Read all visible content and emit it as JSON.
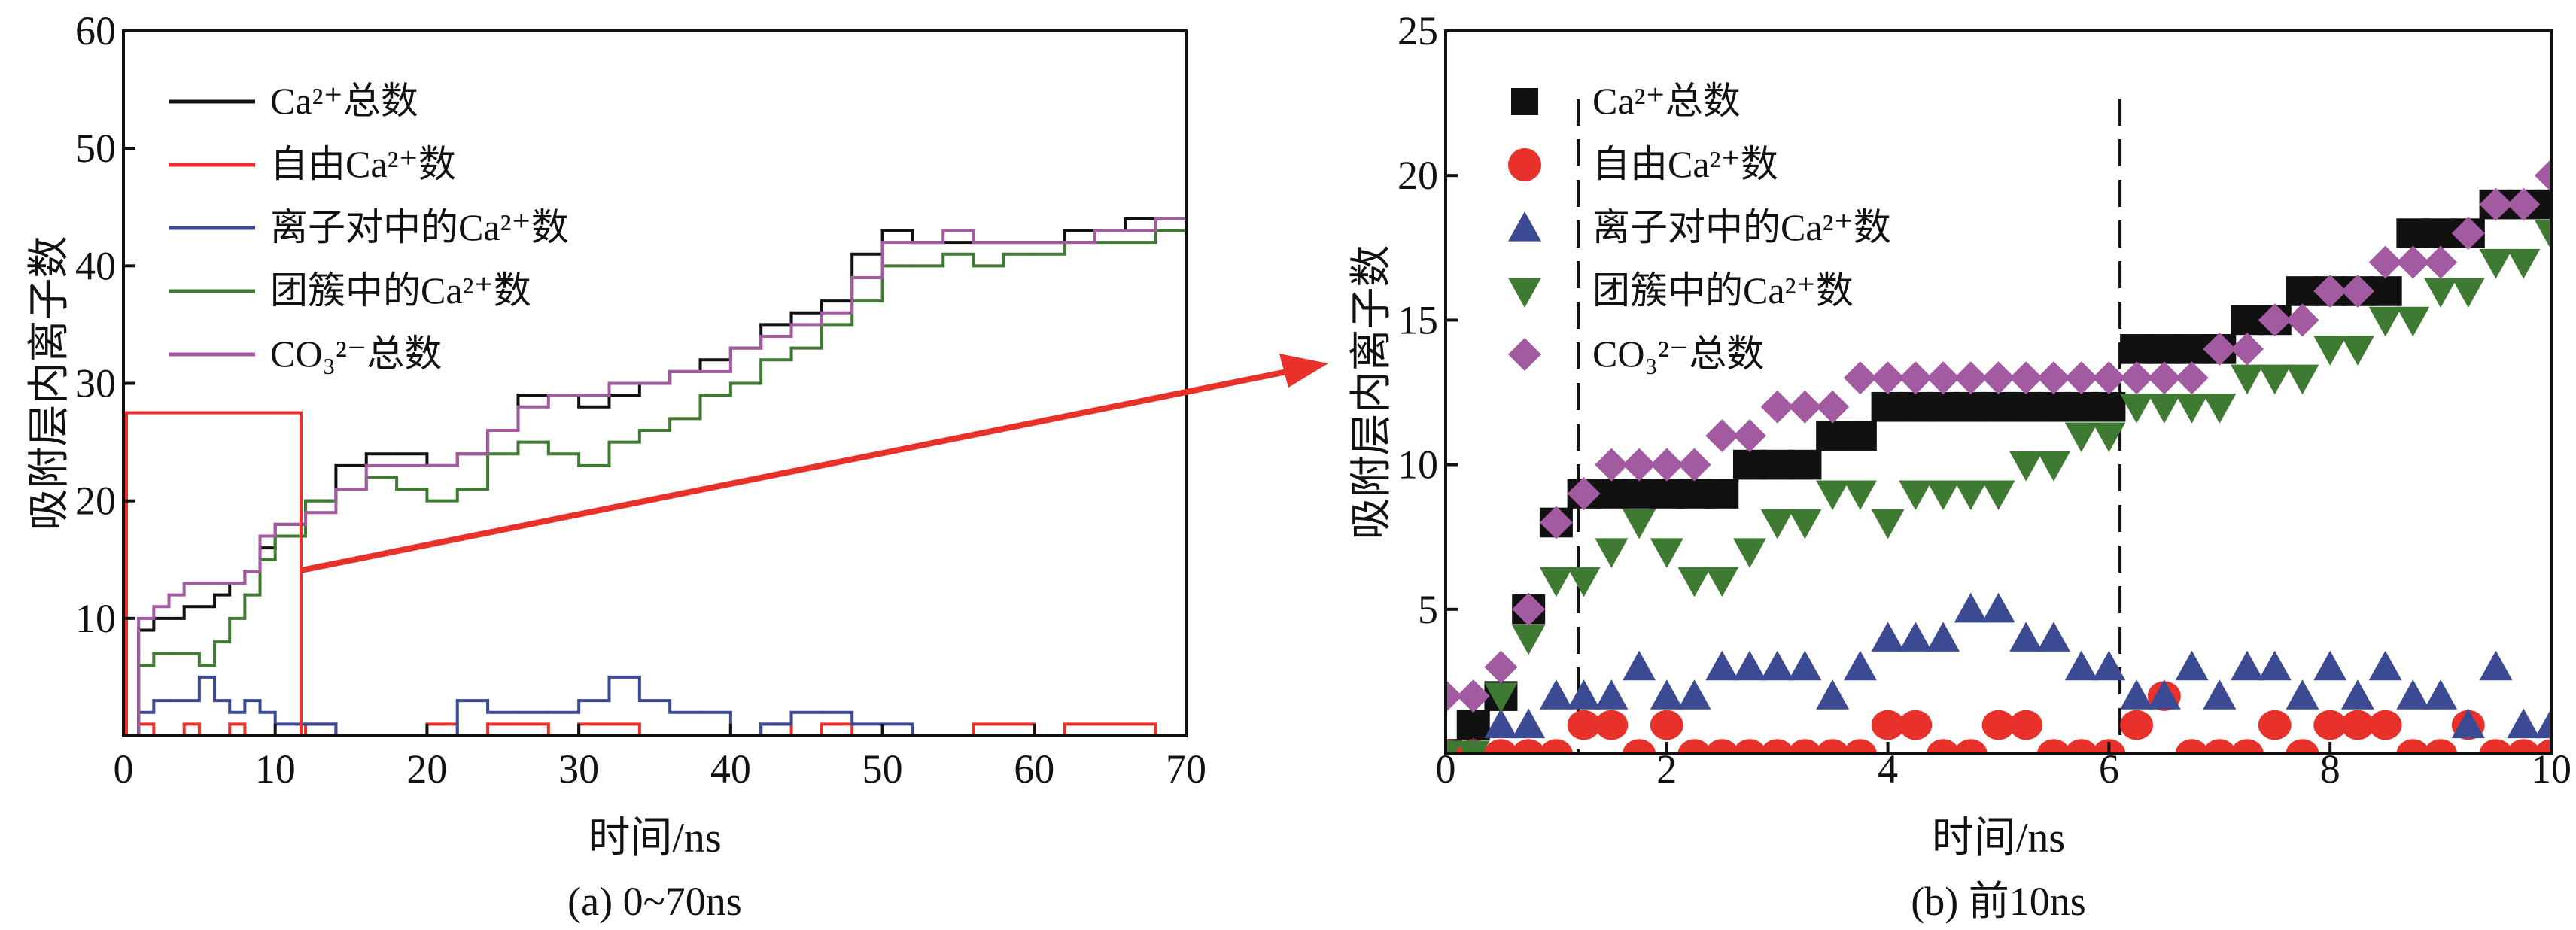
{
  "chart_data": [
    {
      "type": "line",
      "caption": "(a) 0~70ns",
      "xlabel": "时间/ns",
      "ylabel": "吸附层内离子数",
      "xlim": [
        0,
        70
      ],
      "ylim": [
        0,
        60
      ],
      "xticks": [
        "0",
        "10",
        "20",
        "30",
        "40",
        "50",
        "60",
        "70"
      ],
      "yticks": [
        "10",
        "20",
        "30",
        "40",
        "50",
        "60"
      ],
      "legend_position": "top-left",
      "zoom_box": {
        "x": [
          0,
          11.5
        ],
        "y": [
          0,
          27.5
        ]
      },
      "x": [
        0,
        1,
        2,
        3,
        4,
        5,
        6,
        7,
        8,
        9,
        10,
        12,
        14,
        16,
        18,
        20,
        22,
        24,
        26,
        28,
        30,
        32,
        34,
        36,
        38,
        40,
        42,
        44,
        46,
        48,
        50,
        52,
        54,
        56,
        58,
        60,
        62,
        64,
        66,
        68,
        70
      ],
      "series": [
        {
          "name": "Ca²⁺总数",
          "label_main": "Ca",
          "label_sup": "2+",
          "label_suffix": "总数",
          "label_prefix": "",
          "color": "#111111",
          "values": [
            0,
            9,
            10,
            10,
            11,
            11,
            12,
            13,
            14,
            16,
            18,
            20,
            23,
            24,
            24,
            23,
            24,
            26,
            29,
            29,
            28,
            29,
            30,
            31,
            32,
            33,
            35,
            36,
            37,
            41,
            43,
            42,
            42,
            42,
            42,
            42,
            43,
            43,
            44,
            44,
            46
          ]
        },
        {
          "name": "自由Ca²⁺数",
          "label_prefix": "自由",
          "label_main": "Ca",
          "label_sup": "2+",
          "label_suffix": "数",
          "color": "#e8312a",
          "values": [
            0,
            1,
            0,
            0,
            1,
            0,
            0,
            1,
            0,
            0,
            0,
            1,
            0,
            0,
            0,
            1,
            0,
            1,
            1,
            0,
            1,
            1,
            0,
            0,
            0,
            0,
            1,
            0,
            1,
            0,
            0,
            0,
            0,
            1,
            1,
            0,
            1,
            1,
            1,
            0,
            0
          ]
        },
        {
          "name": "离子对中的Ca²⁺数",
          "label_prefix": "离子对中的",
          "label_main": "Ca",
          "label_sup": "2+",
          "label_suffix": "数",
          "color": "#3c4a94",
          "values": [
            0,
            2,
            3,
            3,
            3,
            5,
            3,
            2,
            3,
            2,
            1,
            1,
            0,
            0,
            0,
            0,
            3,
            2,
            2,
            2,
            3,
            5,
            3,
            2,
            2,
            0,
            1,
            2,
            2,
            1,
            1,
            0,
            0,
            0,
            0,
            0,
            0,
            0,
            0,
            0,
            0
          ]
        },
        {
          "name": "团簇中的Ca²⁺数",
          "label_prefix": "团簇中的",
          "label_main": "Ca",
          "label_sup": "2+",
          "label_suffix": "数",
          "color": "#3f7a32",
          "values": [
            0,
            6,
            7,
            7,
            7,
            6,
            8,
            10,
            12,
            15,
            17,
            20,
            21,
            22,
            21,
            20,
            21,
            24,
            25,
            24,
            23,
            25,
            26,
            27,
            29,
            30,
            32,
            33,
            35,
            37,
            40,
            40,
            41,
            40,
            41,
            41,
            42,
            42,
            42,
            43,
            46
          ]
        },
        {
          "name": "CO₃²⁻总数",
          "label_prefix": "",
          "label_main": "CO",
          "label_sub": "3",
          "label_sup": "2−",
          "label_suffix": "总数",
          "color": "#a25aa0",
          "values": [
            0,
            10,
            11,
            12,
            13,
            13,
            13,
            13,
            14,
            17,
            18,
            19,
            21,
            23,
            23,
            23,
            24,
            26,
            28,
            29,
            29,
            30,
            30,
            31,
            31,
            33,
            34,
            35,
            36,
            39,
            42,
            42,
            43,
            42,
            42,
            42,
            42,
            43,
            43,
            44,
            46
          ]
        }
      ]
    },
    {
      "type": "scatter",
      "caption": "(b) 前10ns",
      "xlabel": "时间/ns",
      "ylabel": "吸附层内离子数",
      "xlim": [
        0,
        10
      ],
      "ylim": [
        0,
        25
      ],
      "xticks": [
        "0",
        "2",
        "4",
        "6",
        "8",
        "10"
      ],
      "yticks": [
        "5",
        "10",
        "15",
        "20",
        "25"
      ],
      "legend_position": "top-left",
      "vlines": [
        1.2,
        6.1
      ],
      "x": [
        0,
        0.25,
        0.5,
        0.75,
        1,
        1.25,
        1.5,
        1.75,
        2,
        2.25,
        2.5,
        2.75,
        3,
        3.25,
        3.5,
        3.75,
        4,
        4.25,
        4.5,
        4.75,
        5,
        5.25,
        5.5,
        5.75,
        6,
        6.25,
        6.5,
        6.75,
        7,
        7.25,
        7.5,
        7.75,
        8,
        8.25,
        8.5,
        8.75,
        9,
        9.25,
        9.5,
        9.75,
        10
      ],
      "series": [
        {
          "name": "Ca²⁺总数",
          "marker": "square",
          "color": "#111111",
          "values": [
            0,
            1,
            2,
            5,
            8,
            9,
            9,
            9,
            9,
            9,
            9,
            10,
            10,
            10,
            11,
            11,
            12,
            12,
            12,
            12,
            12,
            12,
            12,
            12,
            12,
            14,
            14,
            14,
            14,
            15,
            15,
            16,
            16,
            16,
            16,
            18,
            18,
            18,
            19,
            19,
            19
          ]
        },
        {
          "name": "自由Ca²⁺数",
          "marker": "circle",
          "color": "#e8312a",
          "values": [
            0,
            0,
            0,
            0,
            0,
            1,
            1,
            0,
            1,
            0,
            0,
            0,
            0,
            0,
            0,
            0,
            1,
            1,
            0,
            0,
            1,
            1,
            0,
            0,
            0,
            1,
            2,
            0,
            0,
            0,
            1,
            0,
            1,
            1,
            1,
            0,
            0,
            1,
            0,
            0,
            0
          ]
        },
        {
          "name": "离子对中的Ca²⁺数",
          "marker": "triangle-up",
          "color": "#3c4a94",
          "values": [
            0,
            0,
            1,
            1,
            2,
            2,
            2,
            3,
            2,
            2,
            3,
            3,
            3,
            3,
            2,
            3,
            4,
            4,
            4,
            5,
            5,
            4,
            4,
            3,
            3,
            2,
            2,
            3,
            2,
            3,
            3,
            2,
            3,
            2,
            3,
            2,
            2,
            1,
            3,
            1,
            1
          ]
        },
        {
          "name": "团簇中的Ca²⁺数",
          "marker": "triangle-down",
          "color": "#3f7a32",
          "values": [
            0,
            0,
            2,
            4,
            6,
            6,
            7,
            8,
            7,
            6,
            6,
            7,
            8,
            8,
            9,
            9,
            8,
            9,
            9,
            9,
            9,
            10,
            10,
            11,
            11,
            12,
            12,
            12,
            12,
            13,
            13,
            13,
            14,
            14,
            15,
            15,
            16,
            16,
            17,
            17,
            18
          ]
        },
        {
          "name": "CO₃²⁻总数",
          "marker": "diamond",
          "color": "#a25aa0",
          "values": [
            2,
            2,
            3,
            5,
            8,
            9,
            10,
            10,
            10,
            10,
            11,
            11,
            12,
            12,
            12,
            13,
            13,
            13,
            13,
            13,
            13,
            13,
            13,
            13,
            13,
            13,
            13,
            13,
            14,
            14,
            15,
            15,
            16,
            16,
            17,
            17,
            17,
            18,
            19,
            19,
            20
          ]
        }
      ]
    }
  ]
}
